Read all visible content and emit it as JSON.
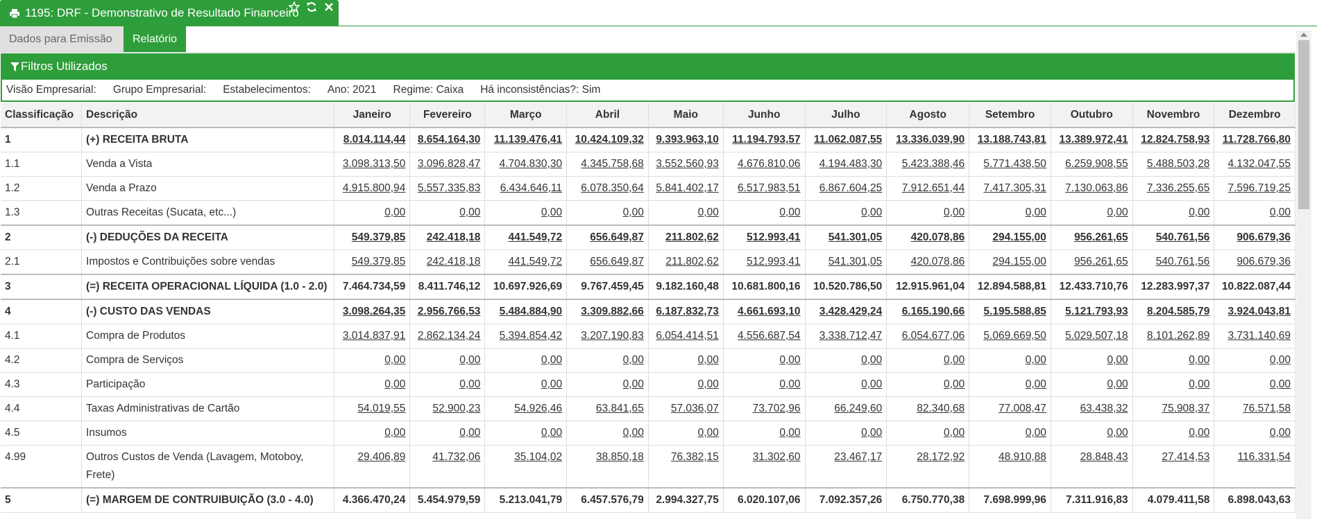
{
  "window": {
    "title": "1195: DRF - Demonstrativo de Resultado Financeiro",
    "icons": [
      "print-icon",
      "star-icon",
      "refresh-icon",
      "close-icon"
    ]
  },
  "subtabs": [
    {
      "label": "Dados para Emissão",
      "active": false
    },
    {
      "label": "Relatório",
      "active": true
    }
  ],
  "filters": {
    "header": "Filtros Utilizados",
    "items": [
      "Visão Empresarial:",
      "Grupo Empresarial:",
      "Estabelecimentos:",
      "Ano: 2021",
      "Regime: Caixa",
      "Há inconsistências?: Sim"
    ]
  },
  "colors": {
    "accent": "#2e9e3a",
    "header_bg": "#f2f2f2"
  },
  "table": {
    "headers": {
      "classificacao": "Classificação",
      "descricao": "Descrição",
      "months": [
        "Janeiro",
        "Fevereiro",
        "Março",
        "Abril",
        "Maio",
        "Junho",
        "Julho",
        "Agosto",
        "Setembro",
        "Outubro",
        "Novembro",
        "Dezembro"
      ]
    },
    "rows": [
      {
        "code": "1",
        "desc": "(+) RECEITA BRUTA",
        "group": true,
        "underline": true,
        "values": [
          "8.014.114,44",
          "8.654.164,30",
          "11.139.476,41",
          "10.424.109,32",
          "9.393.963,10",
          "11.194.793,57",
          "11.062.087,55",
          "13.336.039,90",
          "13.188.743,81",
          "13.389.972,41",
          "12.824.758,93",
          "11.728.766,80"
        ]
      },
      {
        "code": "1.1",
        "desc": "Venda a Vista",
        "group": false,
        "underline": true,
        "values": [
          "3.098.313,50",
          "3.096.828,47",
          "4.704.830,30",
          "4.345.758,68",
          "3.552.560,93",
          "4.676.810,06",
          "4.194.483,30",
          "5.423.388,46",
          "5.771.438,50",
          "6.259.908,55",
          "5.488.503,28",
          "4.132.047,55"
        ]
      },
      {
        "code": "1.2",
        "desc": "Venda a Prazo",
        "group": false,
        "underline": true,
        "values": [
          "4.915.800,94",
          "5.557.335,83",
          "6.434.646,11",
          "6.078.350,64",
          "5.841.402,17",
          "6.517.983,51",
          "6.867.604,25",
          "7.912.651,44",
          "7.417.305,31",
          "7.130.063,86",
          "7.336.255,65",
          "7.596.719,25"
        ]
      },
      {
        "code": "1.3",
        "desc": "Outras Receitas (Sucata, etc...)",
        "group": false,
        "underline": true,
        "values": [
          "0,00",
          "0,00",
          "0,00",
          "0,00",
          "0,00",
          "0,00",
          "0,00",
          "0,00",
          "0,00",
          "0,00",
          "0,00",
          "0,00"
        ]
      },
      {
        "code": "2",
        "desc": "(-) DEDUÇÕES DA RECEITA",
        "group": true,
        "underline": true,
        "values": [
          "549.379,85",
          "242.418,18",
          "441.549,72",
          "656.649,87",
          "211.802,62",
          "512.993,41",
          "541.301,05",
          "420.078,86",
          "294.155,00",
          "956.261,65",
          "540.761,56",
          "906.679,36"
        ]
      },
      {
        "code": "2.1",
        "desc": "Impostos e Contribuições sobre vendas",
        "group": false,
        "underline": true,
        "values": [
          "549.379,85",
          "242.418,18",
          "441.549,72",
          "656.649,87",
          "211.802,62",
          "512.993,41",
          "541.301,05",
          "420.078,86",
          "294.155,00",
          "956.261,65",
          "540.761,56",
          "906.679,36"
        ]
      },
      {
        "code": "3",
        "desc": "(=) RECEITA OPERACIONAL LÍQUIDA (1.0 - 2.0)",
        "group": true,
        "underline": false,
        "values": [
          "7.464.734,59",
          "8.411.746,12",
          "10.697.926,69",
          "9.767.459,45",
          "9.182.160,48",
          "10.681.800,16",
          "10.520.786,50",
          "12.915.961,04",
          "12.894.588,81",
          "12.433.710,76",
          "12.283.997,37",
          "10.822.087,44"
        ]
      },
      {
        "code": "4",
        "desc": "(-) CUSTO DAS VENDAS",
        "group": true,
        "underline": true,
        "values": [
          "3.098.264,35",
          "2.956.766,53",
          "5.484.884,90",
          "3.309.882,66",
          "6.187.832,73",
          "4.661.693,10",
          "3.428.429,24",
          "6.165.190,66",
          "5.195.588,85",
          "5.121.793,93",
          "8.204.585,79",
          "3.924.043,81"
        ]
      },
      {
        "code": "4.1",
        "desc": "Compra de Produtos",
        "group": false,
        "underline": true,
        "values": [
          "3.014.837,91",
          "2.862.134,24",
          "5.394.854,42",
          "3.207.190,83",
          "6.054.414,51",
          "4.556.687,54",
          "3.338.712,47",
          "6.054.677,06",
          "5.069.669,50",
          "5.029.507,18",
          "8.101.262,89",
          "3.731.140,69"
        ]
      },
      {
        "code": "4.2",
        "desc": "Compra de Serviços",
        "group": false,
        "underline": true,
        "values": [
          "0,00",
          "0,00",
          "0,00",
          "0,00",
          "0,00",
          "0,00",
          "0,00",
          "0,00",
          "0,00",
          "0,00",
          "0,00",
          "0,00"
        ]
      },
      {
        "code": "4.3",
        "desc": "Participação",
        "group": false,
        "underline": true,
        "values": [
          "0,00",
          "0,00",
          "0,00",
          "0,00",
          "0,00",
          "0,00",
          "0,00",
          "0,00",
          "0,00",
          "0,00",
          "0,00",
          "0,00"
        ]
      },
      {
        "code": "4.4",
        "desc": "Taxas Administrativas de Cartão",
        "group": false,
        "underline": true,
        "values": [
          "54.019,55",
          "52.900,23",
          "54.926,46",
          "63.841,65",
          "57.036,07",
          "73.702,96",
          "66.249,60",
          "82.340,68",
          "77.008,47",
          "63.438,32",
          "75.908,37",
          "76.571,58"
        ]
      },
      {
        "code": "4.5",
        "desc": "Insumos",
        "group": false,
        "underline": true,
        "values": [
          "0,00",
          "0,00",
          "0,00",
          "0,00",
          "0,00",
          "0,00",
          "0,00",
          "0,00",
          "0,00",
          "0,00",
          "0,00",
          "0,00"
        ]
      },
      {
        "code": "4.99",
        "desc": "Outros Custos de Venda (Lavagem, Motoboy, Frete)",
        "group": false,
        "underline": true,
        "values": [
          "29.406,89",
          "41.732,06",
          "35.104,02",
          "38.850,18",
          "76.382,15",
          "31.302,60",
          "23.467,17",
          "28.172,92",
          "48.910,88",
          "28.848,43",
          "27.414,53",
          "116.331,54"
        ]
      },
      {
        "code": "5",
        "desc": "(=) MARGEM DE CONTRUIBUIÇÃO (3.0 - 4.0)",
        "group": true,
        "underline": false,
        "values": [
          "4.366.470,24",
          "5.454.979,59",
          "5.213.041,79",
          "6.457.576,79",
          "2.994.327,75",
          "6.020.107,06",
          "7.092.357,26",
          "6.750.770,38",
          "7.698.999,96",
          "7.311.916,83",
          "4.079.411,58",
          "6.898.043,63"
        ]
      }
    ]
  }
}
